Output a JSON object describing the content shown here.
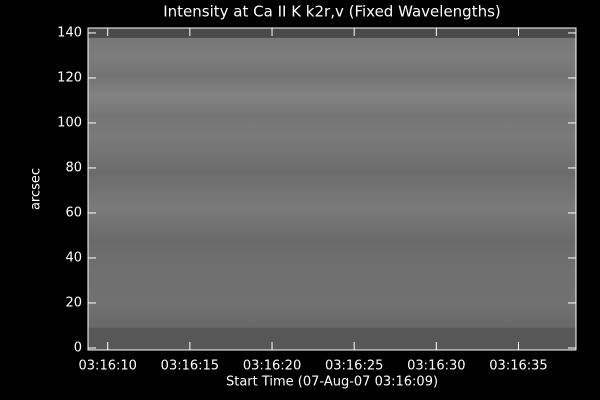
{
  "chart_data": {
    "type": "image",
    "title": "Intensity at Ca II K k2r,v (Fixed Wavelengths)",
    "x_label": "Start Time (07-Aug-07 03:16:09)",
    "y_label": "arcsec",
    "xlim": [
      8.8,
      38.5
    ],
    "xticks": [
      {
        "value": 10,
        "label": "03:16:10"
      },
      {
        "value": 15,
        "label": "03:16:15"
      },
      {
        "value": 20,
        "label": "03:16:20"
      },
      {
        "value": 25,
        "label": "03:16:25"
      },
      {
        "value": 30,
        "label": "03:16:30"
      },
      {
        "value": 35,
        "label": "03:16:35"
      }
    ],
    "ylim": [
      -0.9,
      142.2
    ],
    "yticks": [
      0,
      20,
      40,
      60,
      80,
      100,
      120,
      140
    ]
  }
}
